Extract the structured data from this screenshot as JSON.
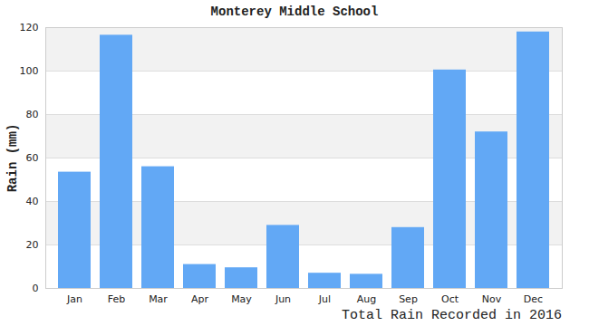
{
  "chart_data": {
    "type": "bar",
    "title": "Monterey Middle School",
    "caption": "Total Rain Recorded in 2016",
    "y_label": "Rain (mm)",
    "categories": [
      "Jan",
      "Feb",
      "Mar",
      "Apr",
      "May",
      "Jun",
      "Jul",
      "Aug",
      "Sep",
      "Oct",
      "Nov",
      "Dec"
    ],
    "values": [
      53.5,
      116.5,
      56,
      11,
      9.5,
      29,
      7,
      6.5,
      28,
      100.5,
      72,
      118
    ],
    "color": "#62a8f5",
    "ylim": [
      0,
      120
    ],
    "yticks": [
      0,
      20,
      40,
      60,
      80,
      100,
      120
    ],
    "grid": true
  }
}
